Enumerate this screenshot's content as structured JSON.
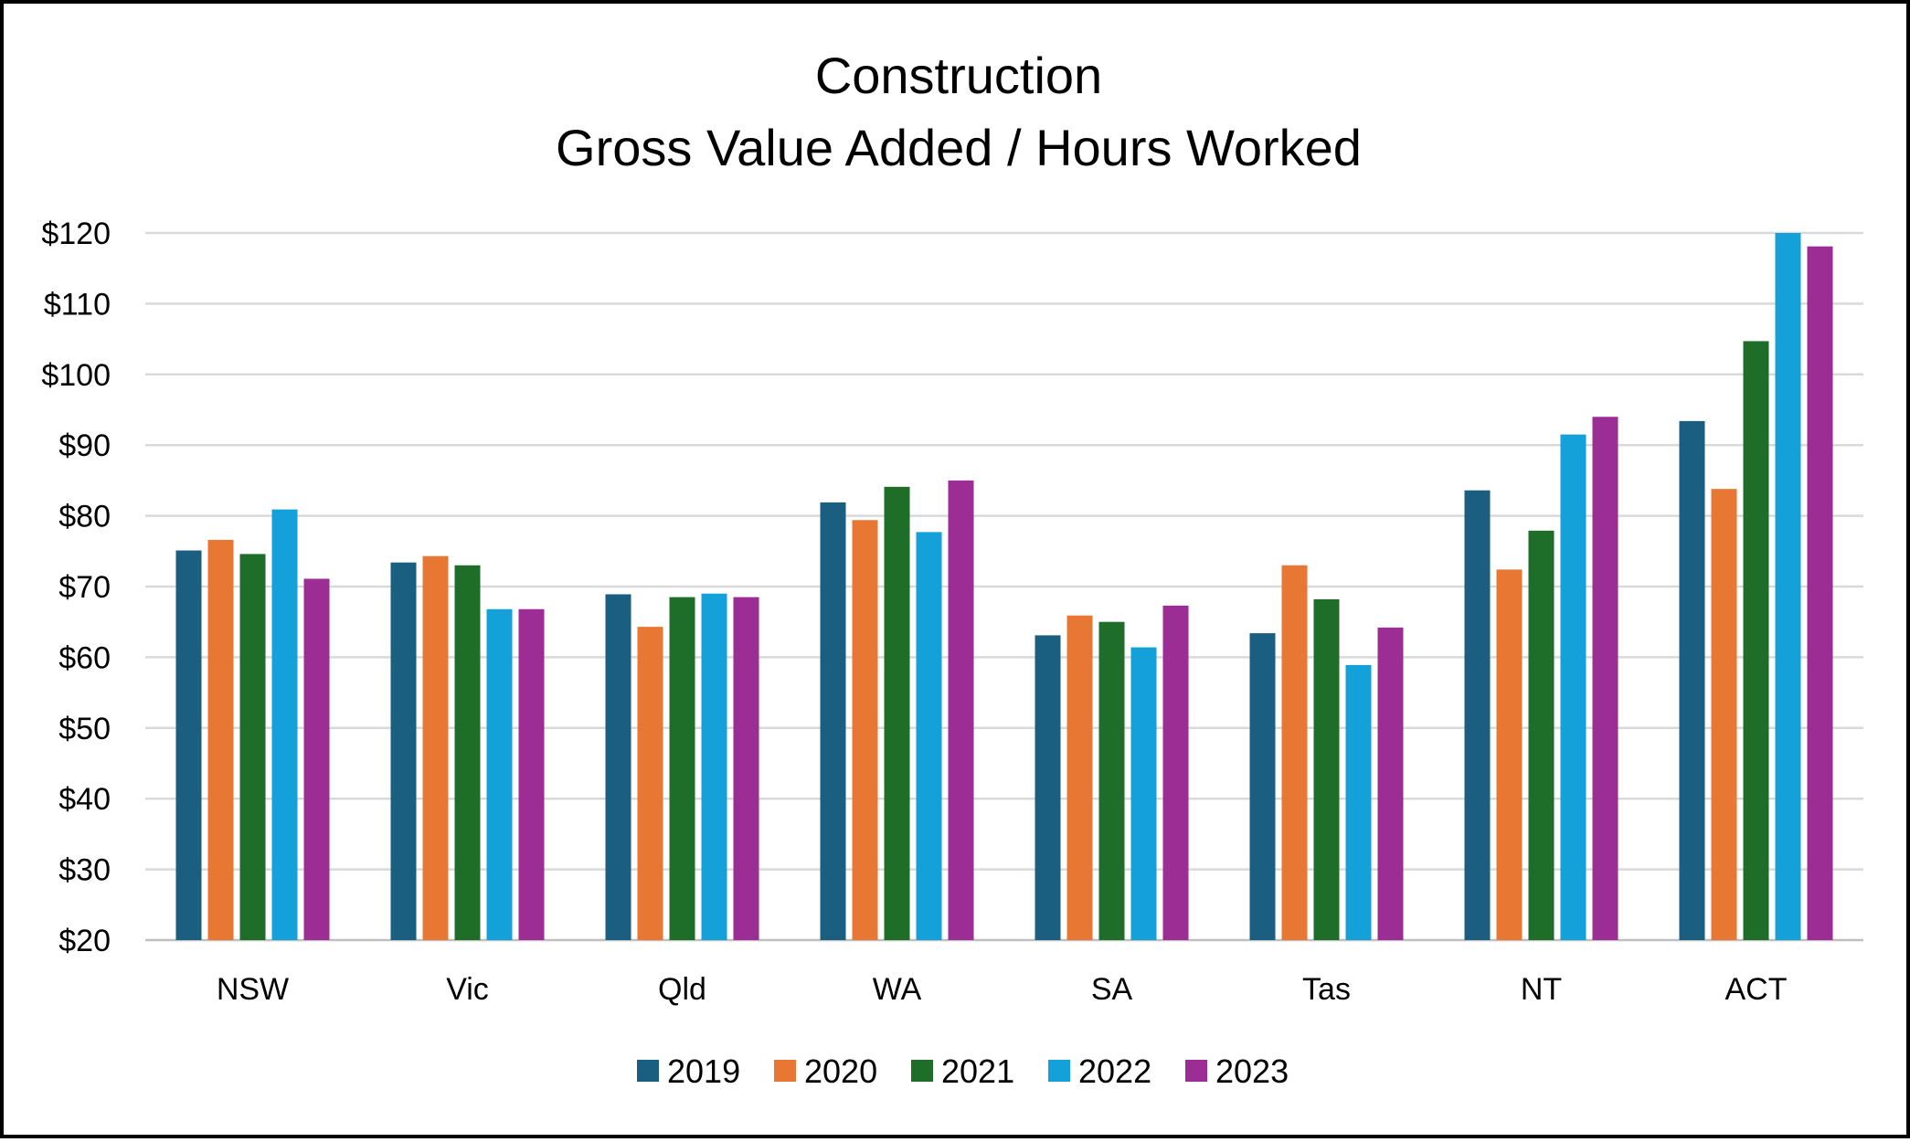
{
  "chart_data": {
    "type": "bar",
    "title": "Construction",
    "subtitle": "Gross Value Added / Hours Worked",
    "xlabel": "",
    "ylabel": "",
    "ylim": [
      20,
      120
    ],
    "y_ticks": [
      20,
      30,
      40,
      50,
      60,
      70,
      80,
      90,
      100,
      110,
      120
    ],
    "y_tick_labels": [
      "$20",
      "$30",
      "$40",
      "$50",
      "$60",
      "$70",
      "$80",
      "$90",
      "$100",
      "$110",
      "$120"
    ],
    "grid": true,
    "legend_position": "bottom",
    "categories": [
      "NSW",
      "Vic",
      "Qld",
      "WA",
      "SA",
      "Tas",
      "NT",
      "ACT"
    ],
    "series": [
      {
        "name": "2019",
        "color": "#1a5e80",
        "values": [
          75.1,
          73.4,
          68.9,
          81.9,
          63.1,
          63.4,
          83.6,
          93.4
        ]
      },
      {
        "name": "2020",
        "color": "#e87734",
        "values": [
          76.6,
          74.3,
          64.3,
          79.4,
          65.9,
          73.0,
          72.4,
          83.8
        ]
      },
      {
        "name": "2021",
        "color": "#1e6e2a",
        "values": [
          74.6,
          73.0,
          68.5,
          84.1,
          65.0,
          68.2,
          77.9,
          104.7
        ]
      },
      {
        "name": "2022",
        "color": "#14a0d8",
        "values": [
          80.9,
          66.8,
          69.0,
          77.7,
          61.4,
          58.9,
          91.5,
          120.0
        ]
      },
      {
        "name": "2023",
        "color": "#9b2d94",
        "values": [
          71.1,
          66.8,
          68.5,
          85.0,
          67.3,
          64.2,
          94.0,
          118.1
        ]
      }
    ]
  }
}
